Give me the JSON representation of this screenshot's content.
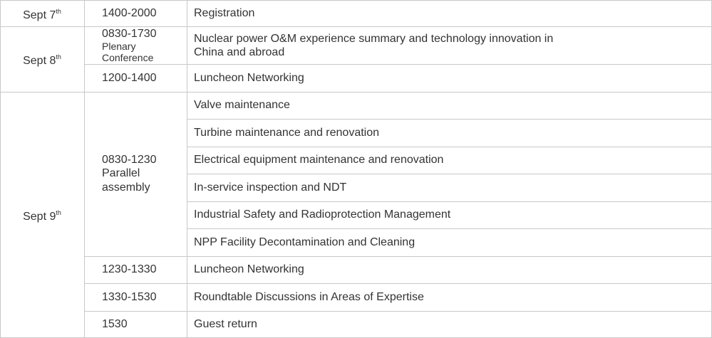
{
  "days": [
    {
      "label": "Sept 7",
      "suffix": "th",
      "slots": [
        {
          "time": "1400-2000",
          "sessions": [
            "Registration"
          ]
        }
      ]
    },
    {
      "label": "Sept 8",
      "suffix": "th",
      "slots": [
        {
          "time": "0830-1730",
          "note": "Plenary Conference",
          "sessions": [
            "Nuclear power O&M experience summary and technology innovation in China and abroad"
          ]
        },
        {
          "time": "1200-1400",
          "sessions": [
            "Luncheon Networking"
          ]
        }
      ]
    },
    {
      "label": "Sept 9",
      "suffix": "th",
      "slots": [
        {
          "time": "0830-1230",
          "note": "Parallel assembly",
          "sessions": [
            "Valve maintenance",
            "Turbine maintenance and renovation",
            "Electrical equipment maintenance and renovation",
            "In-service inspection and NDT",
            "Industrial Safety and Radioprotection Management",
            "NPP Facility Decontamination and Cleaning"
          ]
        },
        {
          "time": "1230-1330",
          "sessions": [
            "Luncheon Networking"
          ]
        },
        {
          "time": "1330-1530",
          "sessions": [
            "Roundtable Discussions in Areas of Expertise"
          ]
        },
        {
          "time": "1530",
          "sessions": [
            "Guest return"
          ]
        }
      ]
    }
  ]
}
